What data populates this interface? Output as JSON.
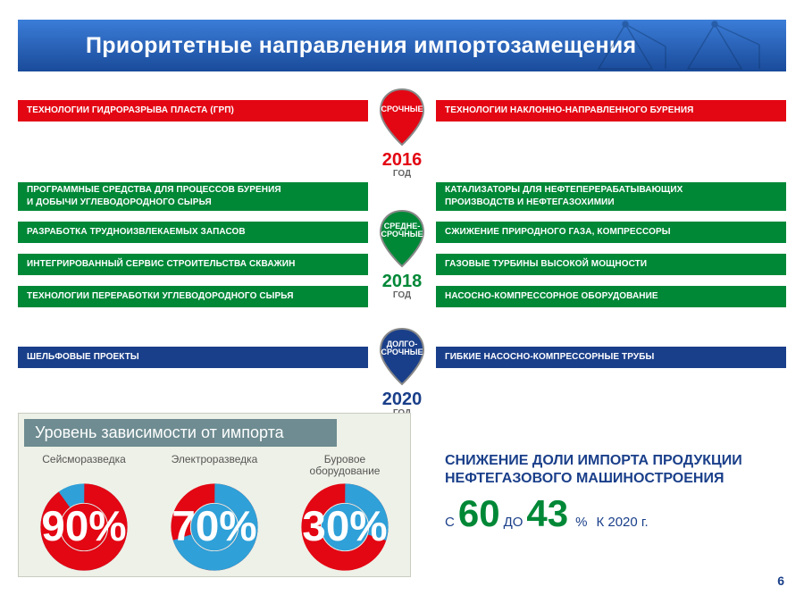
{
  "header": {
    "title": "Приоритетные направления импортозамещения"
  },
  "colors": {
    "red": "#e30613",
    "green": "#008837",
    "blue": "#1a3f8a",
    "header_grad_top": "#3b7dd8",
    "header_grad_bot": "#1a4b9a",
    "panel_bg": "#eef1e7",
    "panel_title_bg": "#6e8c91"
  },
  "pins": [
    {
      "label": "СРОЧНЫЕ",
      "year": "2016",
      "sub": "ГОД",
      "color": "#e30613",
      "year_color": "#e30613"
    },
    {
      "label": "СРЕДНЕ-\nСРОЧНЫЕ",
      "year": "2018",
      "sub": "ГОД",
      "color": "#008837",
      "year_color": "#008837"
    },
    {
      "label": "ДОЛГО-\nСРОЧНЫЕ",
      "year": "2020",
      "sub": "ГОД",
      "color": "#1a3f8a",
      "year_color": "#1a3f8a"
    }
  ],
  "groups": [
    {
      "left": [
        "ТЕХНОЛОГИИ ГИДРОРАЗРЫВА ПЛАСТА (ГРП)"
      ],
      "right": [
        "ТЕХНОЛОГИИ НАКЛОННО-НАПРАВЛЕННОГО БУРЕНИЯ"
      ],
      "color": "red"
    },
    {
      "left": [
        "ПРОГРАММНЫЕ СРЕДСТВА ДЛЯ ПРОЦЕССОВ БУРЕНИЯ\nИ ДОБЫЧИ УГЛЕВОДОРОДНОГО СЫРЬЯ",
        "РАЗРАБОТКА ТРУДНОИЗВЛЕКАЕМЫХ ЗАПАСОВ",
        "ИНТЕГРИРОВАННЫЙ СЕРВИС СТРОИТЕЛЬСТВА СКВАЖИН",
        "ТЕХНОЛОГИИ ПЕРЕРАБОТКИ УГЛЕВОДОРОДНОГО СЫРЬЯ"
      ],
      "right": [
        "КАТАЛИЗАТОРЫ ДЛЯ НЕФТЕПЕРЕРАБАТЫВАЮЩИХ\nПРОИЗВОДСТВ И НЕФТЕГАЗОХИМИИ",
        "СЖИЖЕНИЕ ПРИРОДНОГО ГАЗА, КОМПРЕССОРЫ",
        "ГАЗОВЫЕ ТУРБИНЫ ВЫСОКОЙ МОЩНОСТИ",
        "НАСОСНО-КОМПРЕССОРНОЕ ОБОРУДОВАНИЕ"
      ],
      "color": "green"
    },
    {
      "left": [
        "ШЕЛЬФОВЫЕ ПРОЕКТЫ"
      ],
      "right": [
        "ГИБКИЕ НАСОСНО-КОМПРЕССОРНЫЕ ТРУБЫ"
      ],
      "color": "blue"
    }
  ],
  "dependence": {
    "title": "Уровень зависимости от импорта",
    "donuts": [
      {
        "caption": "Сейсморазведка",
        "pct": 90,
        "arc_color": "#e30613",
        "rest_color": "#2fa0d8"
      },
      {
        "caption": "Электроразведка",
        "pct": 70,
        "arc_color": "#2fa0d8",
        "rest_color": "#e30613"
      },
      {
        "caption": "Буровое\nоборудование",
        "pct": 30,
        "arc_color": "#2fa0d8",
        "rest_color": "#e30613"
      }
    ]
  },
  "reduction": {
    "heading": "СНИЖЕНИЕ ДОЛИ ИМПОРТА ПРОДУКЦИИ НЕФТЕГАЗОВОГО МАШИНОСТРОЕНИЯ",
    "from_label": "С",
    "from": "60",
    "to_label": "ДО",
    "to": "43",
    "unit": "%",
    "by": "К 2020 г."
  },
  "page": "6"
}
